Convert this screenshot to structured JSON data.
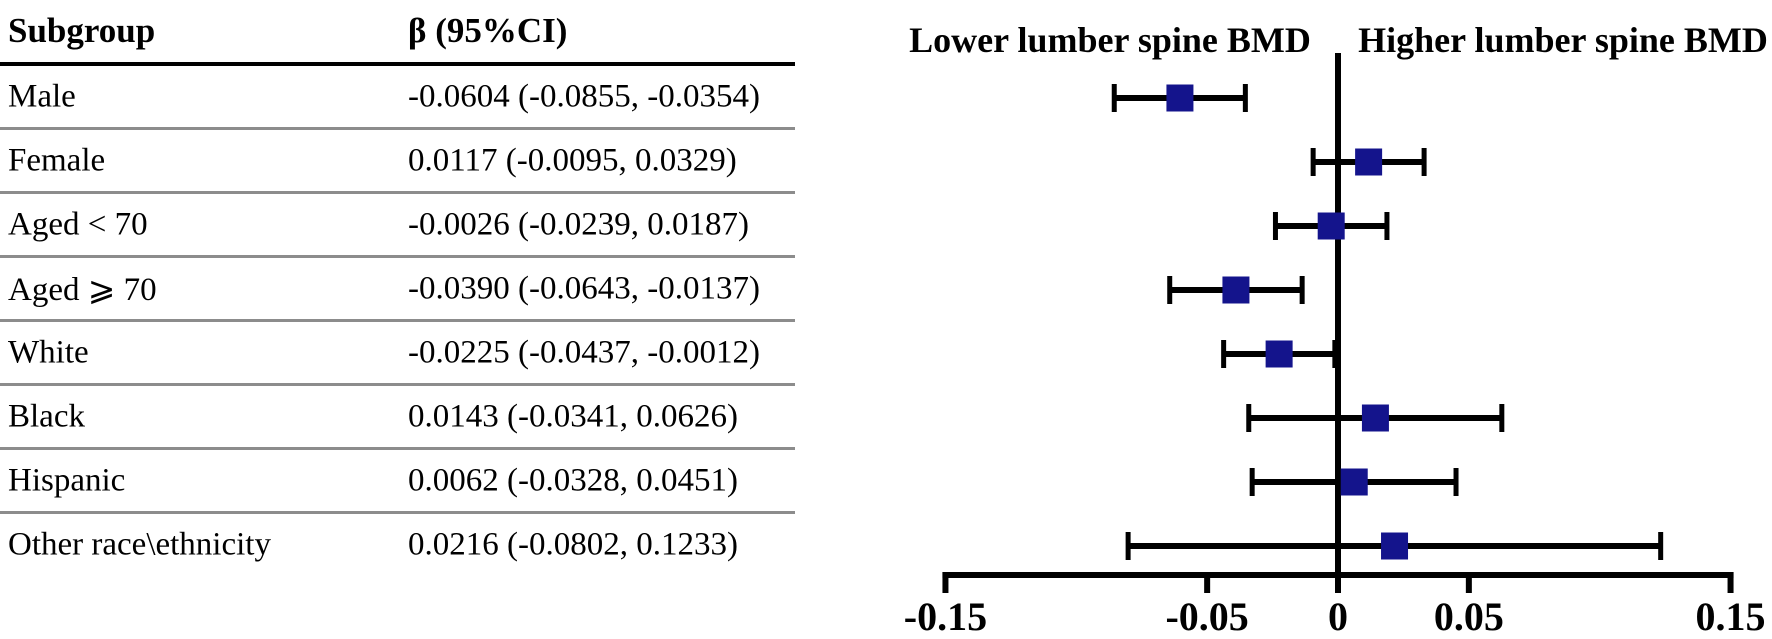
{
  "table": {
    "headers": {
      "subgroup": "Subgroup",
      "beta_ci": "β (95%CI)"
    },
    "rows": [
      {
        "subgroup": "Male",
        "beta_ci": "-0.0604 (-0.0855, -0.0354)"
      },
      {
        "subgroup": "Female",
        "beta_ci": "0.0117 (-0.0095, 0.0329)"
      },
      {
        "subgroup": "Aged < 70",
        "beta_ci": "-0.0026 (-0.0239, 0.0187)"
      },
      {
        "subgroup": "Aged ⩾ 70",
        "beta_ci": "-0.0390 (-0.0643, -0.0137)"
      },
      {
        "subgroup": "White",
        "beta_ci": "-0.0225 (-0.0437, -0.0012)"
      },
      {
        "subgroup": "Black",
        "beta_ci": "0.0143 (-0.0341, 0.0626)"
      },
      {
        "subgroup": "Hispanic",
        "beta_ci": "0.0062 (-0.0328, 0.0451)"
      },
      {
        "subgroup": "Other race\\ethnicity",
        "beta_ci": "0.0216 (-0.0802, 0.1233)"
      }
    ]
  },
  "chart_data": {
    "type": "forest",
    "header_left": "Lower lumber spine BMD",
    "header_right": "Higher lumber spine BMD",
    "categories": [
      "Male",
      "Female",
      "Aged < 70",
      "Aged ⩾ 70",
      "White",
      "Black",
      "Hispanic",
      "Other race\\ethnicity"
    ],
    "series": [
      {
        "name": "beta",
        "values": [
          -0.0604,
          0.0117,
          -0.0026,
          -0.039,
          -0.0225,
          0.0143,
          0.0062,
          0.0216
        ]
      },
      {
        "name": "ci_low",
        "values": [
          -0.0855,
          -0.0095,
          -0.0239,
          -0.0643,
          -0.0437,
          -0.0341,
          -0.0328,
          -0.0802
        ]
      },
      {
        "name": "ci_high",
        "values": [
          -0.0354,
          0.0329,
          0.0187,
          -0.0137,
          -0.0012,
          0.0626,
          0.0451,
          0.1233
        ]
      }
    ],
    "xlim": [
      -0.15,
      0.15
    ],
    "zero_line": 0,
    "xticks": [
      {
        "v": -0.15,
        "label": "-0.15"
      },
      {
        "v": -0.05,
        "label": "-0.05"
      },
      {
        "v": 0,
        "label": "0"
      },
      {
        "v": 0.05,
        "label": "0.05"
      },
      {
        "v": 0.15,
        "label": "0.15"
      }
    ],
    "marker_color": "#14148C",
    "axis_color": "#000000",
    "grid": "off",
    "legend": "none"
  }
}
